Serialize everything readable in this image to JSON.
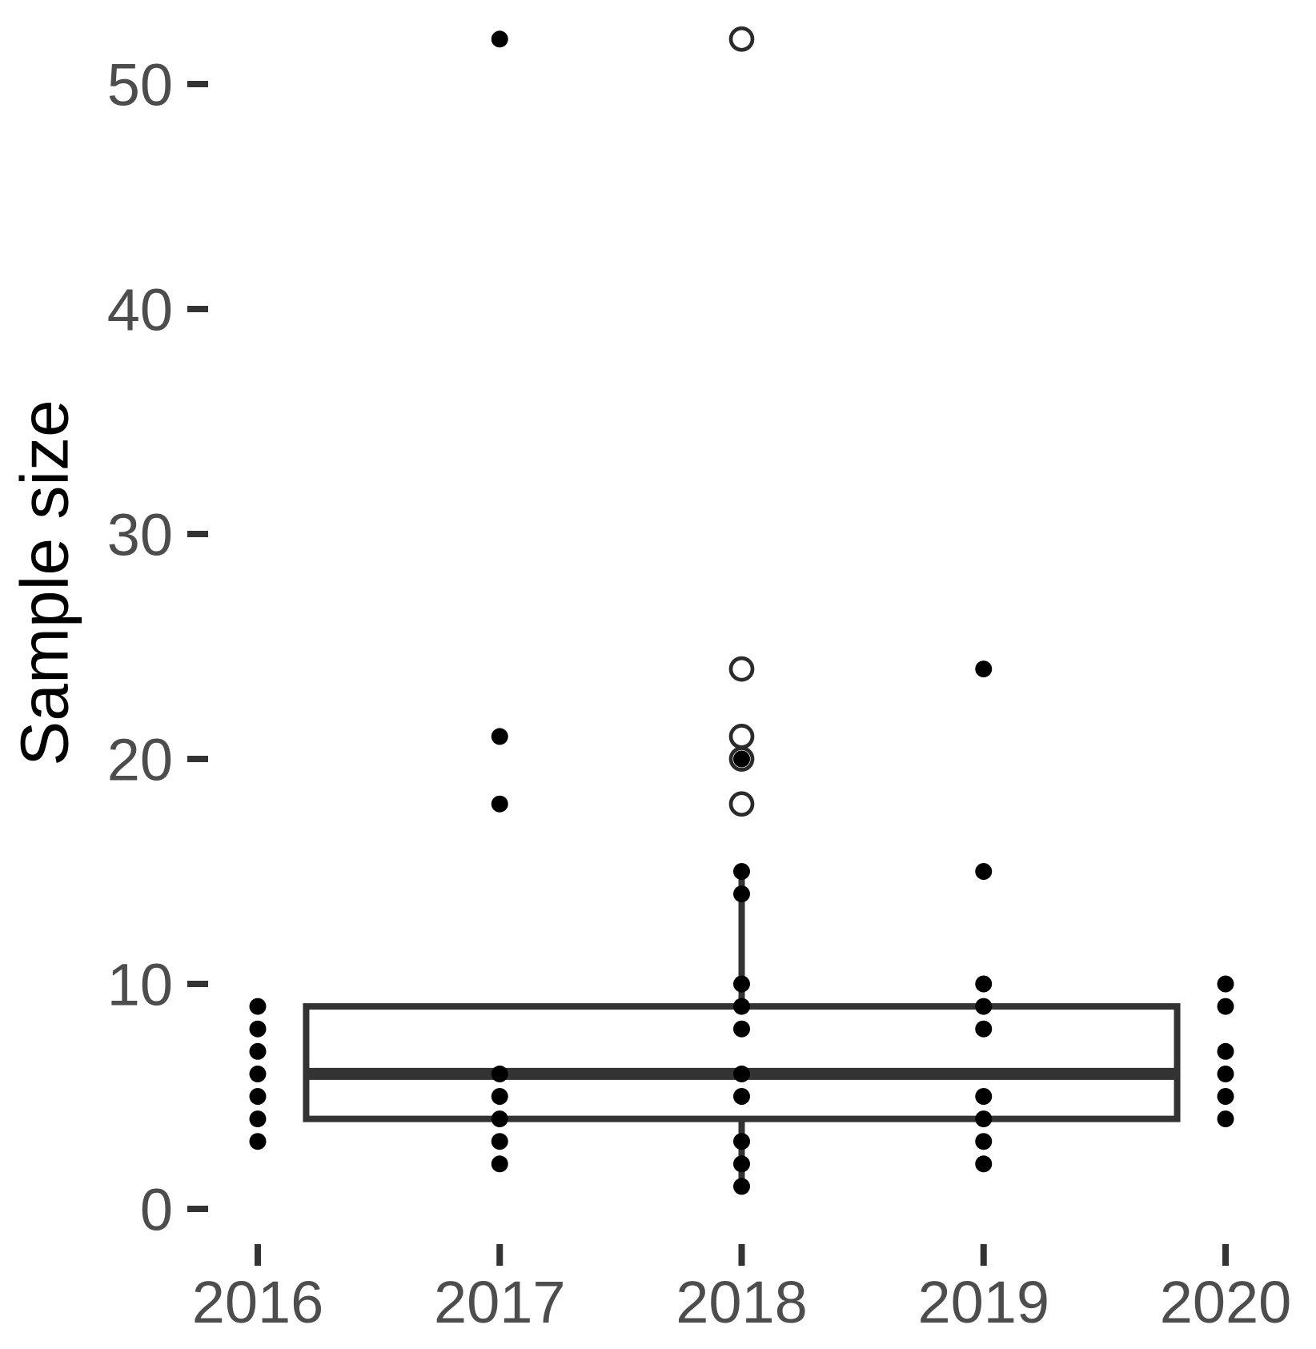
{
  "figure": {
    "background": "#ffffff"
  },
  "chart_data": {
    "type": "scatter",
    "subtype": "boxplot-with-jittered-points",
    "title": "",
    "xlabel": "",
    "ylabel": "Sample size",
    "x_tick_labels": [
      "2016",
      "2017",
      "2018",
      "2019",
      "2020"
    ],
    "x_tick_values": [
      2016,
      2017,
      2018,
      2019,
      2020
    ],
    "y_tick_labels": [
      "0",
      "10",
      "20",
      "30",
      "40",
      "50"
    ],
    "y_tick_values": [
      0,
      10,
      20,
      30,
      40,
      50
    ],
    "ylim": [
      0,
      53.5
    ],
    "grid": false,
    "legend_position": "none",
    "series": [
      {
        "name": "2016",
        "x": 2016,
        "marker": "filled-dot",
        "values": [
          9,
          8,
          7,
          6,
          5,
          4,
          3
        ]
      },
      {
        "name": "2017",
        "x": 2017,
        "marker": "filled-dot",
        "values": [
          52,
          21,
          18,
          6,
          5,
          4,
          3,
          2
        ]
      },
      {
        "name": "2018",
        "x": 2018,
        "marker": "filled-dot",
        "values": [
          20,
          15,
          14,
          10,
          9,
          8,
          6,
          5,
          3,
          2,
          1
        ]
      },
      {
        "name": "2019",
        "x": 2019,
        "marker": "filled-dot",
        "values": [
          24,
          15,
          10,
          9,
          8,
          5,
          4,
          3,
          2
        ]
      },
      {
        "name": "2020",
        "x": 2020,
        "marker": "filled-dot",
        "values": [
          10,
          9,
          7,
          6,
          5,
          4
        ]
      }
    ],
    "boxplot": {
      "combined_all_years": true,
      "x_center": 2018,
      "x_left": 2016.2,
      "x_right": 2019.8,
      "q1": 4,
      "median": 6,
      "q3": 9,
      "whisker_low": 1,
      "whisker_high": 15,
      "outliers": {
        "marker": "open-circle",
        "x": 2018,
        "values": [
          52,
          24,
          21,
          20,
          18
        ]
      }
    },
    "colors": {
      "point": "#000000",
      "outlier_stroke": "#2b2b2b",
      "box_line": "#333333",
      "tick_mark": "#333333",
      "tick_label": "#4d4d4d",
      "axis_title": "#000000"
    }
  }
}
